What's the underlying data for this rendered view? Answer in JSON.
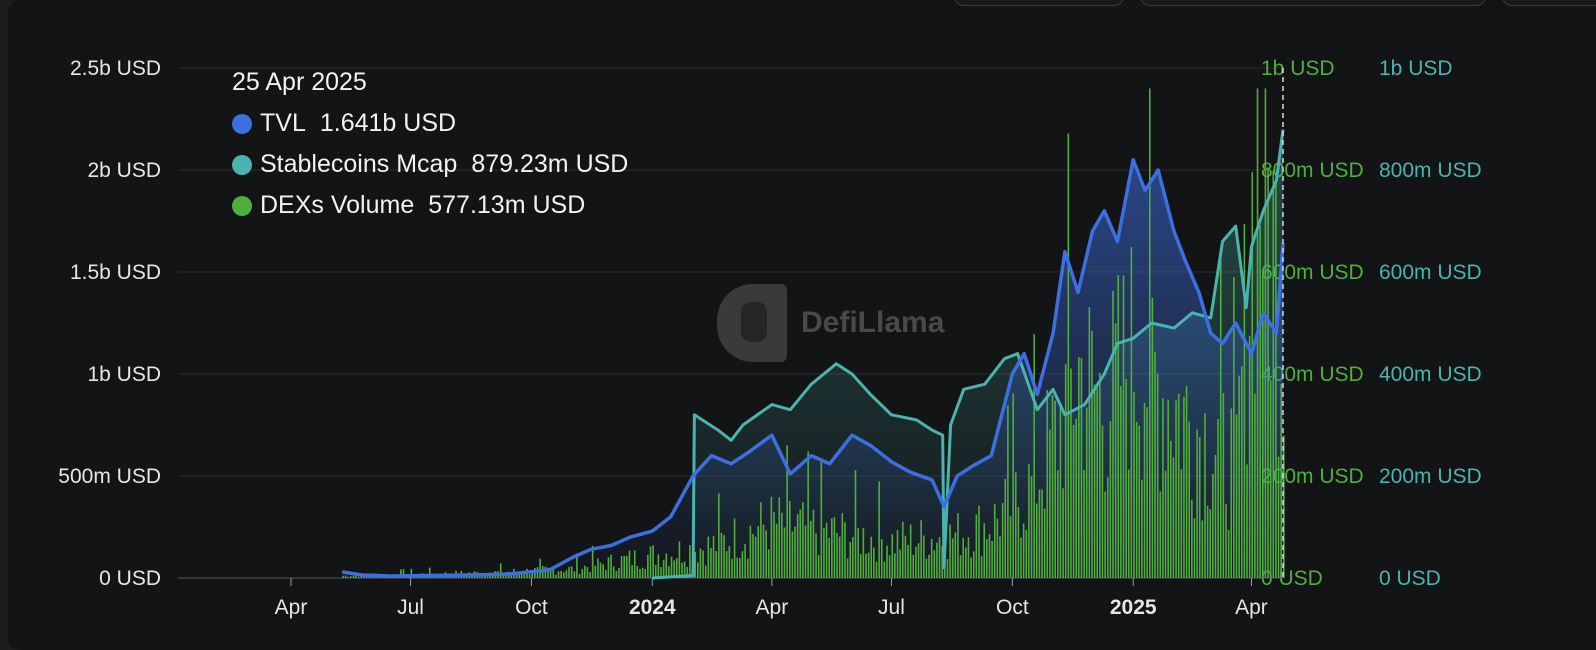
{
  "chart_data": {
    "type": "line",
    "tooltip": {
      "date": "25 Apr 2025",
      "items": [
        {
          "name": "TVL",
          "value": "1.641b USD",
          "color": "#3c6fe0"
        },
        {
          "name": "Stablecoins Mcap",
          "value": "879.23m USD",
          "color": "#4ab3ad"
        },
        {
          "name": "DEXs Volume",
          "value": "577.13m USD",
          "color": "#4fae3c"
        }
      ]
    },
    "watermark": "DefiLlama",
    "x_ticks": [
      {
        "label": "Apr",
        "date": "2023-04-01",
        "bold": false
      },
      {
        "label": "Jul",
        "date": "2023-07-01",
        "bold": false
      },
      {
        "label": "Oct",
        "date": "2023-10-01",
        "bold": false
      },
      {
        "label": "2024",
        "date": "2024-01-01",
        "bold": true
      },
      {
        "label": "Apr",
        "date": "2024-04-01",
        "bold": false
      },
      {
        "label": "Jul",
        "date": "2024-07-01",
        "bold": false
      },
      {
        "label": "Oct",
        "date": "2024-10-01",
        "bold": false
      },
      {
        "label": "2025",
        "date": "2025-01-01",
        "bold": true
      },
      {
        "label": "Apr",
        "date": "2025-04-01",
        "bold": false
      }
    ],
    "x_range": [
      "2023-01-05",
      "2025-04-25"
    ],
    "y_left": {
      "min": 0,
      "max": 2500000000,
      "ticks": [
        "0 USD",
        "500m USD",
        "1b USD",
        "1.5b USD",
        "2b USD",
        "2.5b USD"
      ],
      "color": "#e6e6e6"
    },
    "y_dex": {
      "min": 0,
      "max": 1000000000,
      "ticks": [
        "0 USD",
        "200m USD",
        "400m USD",
        "600m USD",
        "800m USD",
        "1b USD"
      ],
      "color": "#4fae3c"
    },
    "y_stable": {
      "min": 0,
      "max": 1000000000,
      "ticks": [
        "0 USD",
        "200m USD",
        "400m USD",
        "600m USD",
        "800m USD",
        "1b USD"
      ],
      "color": "#4ab3ad"
    },
    "series": [
      {
        "name": "TVL",
        "axis": "left",
        "color": "#3c6fe0",
        "x": [
          "2023-05-10",
          "2023-05-25",
          "2023-06-15",
          "2023-07-15",
          "2023-08-15",
          "2023-09-15",
          "2023-10-15",
          "2023-11-01",
          "2023-11-15",
          "2023-12-01",
          "2023-12-15",
          "2024-01-01",
          "2024-01-15",
          "2024-02-01",
          "2024-02-15",
          "2024-03-01",
          "2024-03-15",
          "2024-04-01",
          "2024-04-15",
          "2024-05-01",
          "2024-05-15",
          "2024-06-01",
          "2024-06-15",
          "2024-07-01",
          "2024-07-15",
          "2024-08-01",
          "2024-08-10",
          "2024-08-20",
          "2024-09-01",
          "2024-09-15",
          "2024-10-01",
          "2024-10-10",
          "2024-10-20",
          "2024-11-01",
          "2024-11-10",
          "2024-11-20",
          "2024-12-01",
          "2024-12-10",
          "2024-12-20",
          "2025-01-01",
          "2025-01-10",
          "2025-01-20",
          "2025-02-01",
          "2025-02-10",
          "2025-02-20",
          "2025-03-01",
          "2025-03-10",
          "2025-03-20",
          "2025-04-01",
          "2025-04-10",
          "2025-04-20",
          "2025-04-25"
        ],
        "y": [
          30000000,
          15000000,
          10000000,
          12000000,
          15000000,
          20000000,
          40000000,
          100000000,
          140000000,
          160000000,
          200000000,
          230000000,
          300000000,
          500000000,
          600000000,
          560000000,
          620000000,
          700000000,
          510000000,
          600000000,
          560000000,
          700000000,
          650000000,
          570000000,
          520000000,
          480000000,
          350000000,
          500000000,
          550000000,
          600000000,
          1000000000,
          1100000000,
          900000000,
          1200000000,
          1600000000,
          1400000000,
          1700000000,
          1800000000,
          1650000000,
          2050000000,
          1900000000,
          2000000000,
          1700000000,
          1550000000,
          1400000000,
          1200000000,
          1150000000,
          1250000000,
          1100000000,
          1300000000,
          1200000000,
          1641000000
        ]
      },
      {
        "name": "Stablecoins Mcap",
        "axis": "stable",
        "color": "#4ab3ad",
        "x": [
          "2024-01-01",
          "2024-02-01",
          "2024-02-02",
          "2024-02-20",
          "2024-03-01",
          "2024-03-10",
          "2024-04-01",
          "2024-04-15",
          "2024-05-01",
          "2024-05-20",
          "2024-06-01",
          "2024-06-15",
          "2024-07-01",
          "2024-07-20",
          "2024-08-01",
          "2024-08-09",
          "2024-08-10",
          "2024-08-15",
          "2024-08-25",
          "2024-09-10",
          "2024-09-25",
          "2024-10-05",
          "2024-10-20",
          "2024-11-01",
          "2024-11-10",
          "2024-11-25",
          "2024-12-10",
          "2024-12-20",
          "2025-01-01",
          "2025-01-15",
          "2025-02-01",
          "2025-02-15",
          "2025-03-01",
          "2025-03-10",
          "2025-03-20",
          "2025-03-28",
          "2025-04-01",
          "2025-04-10",
          "2025-04-20",
          "2025-04-25"
        ],
        "y": [
          0,
          5000000,
          320000000,
          290000000,
          270000000,
          300000000,
          340000000,
          330000000,
          380000000,
          420000000,
          400000000,
          360000000,
          320000000,
          310000000,
          290000000,
          280000000,
          20000000,
          300000000,
          370000000,
          380000000,
          430000000,
          440000000,
          330000000,
          370000000,
          320000000,
          340000000,
          400000000,
          460000000,
          470000000,
          500000000,
          490000000,
          520000000,
          510000000,
          660000000,
          690000000,
          530000000,
          650000000,
          720000000,
          780000000,
          879230000
        ]
      },
      {
        "name": "DEXs Volume",
        "axis": "dex",
        "color": "#4fae3c",
        "render": "bars",
        "x": [
          "2023-05-10",
          "2023-07-01",
          "2023-09-01",
          "2023-11-01",
          "2024-01-01",
          "2024-02-15",
          "2024-04-01",
          "2024-05-15",
          "2024-07-01",
          "2024-08-15",
          "2024-09-15",
          "2024-10-15",
          "2024-11-01",
          "2024-11-20",
          "2024-12-10",
          "2025-01-01",
          "2025-01-20",
          "2025-02-10",
          "2025-03-01",
          "2025-03-20",
          "2025-04-05",
          "2025-04-25"
        ],
        "y": [
          5000000,
          8000000,
          12000000,
          20000000,
          50000000,
          70000000,
          120000000,
          100000000,
          80000000,
          90000000,
          120000000,
          200000000,
          300000000,
          450000000,
          380000000,
          500000000,
          420000000,
          350000000,
          300000000,
          250000000,
          950000000,
          577130000
        ]
      }
    ]
  }
}
